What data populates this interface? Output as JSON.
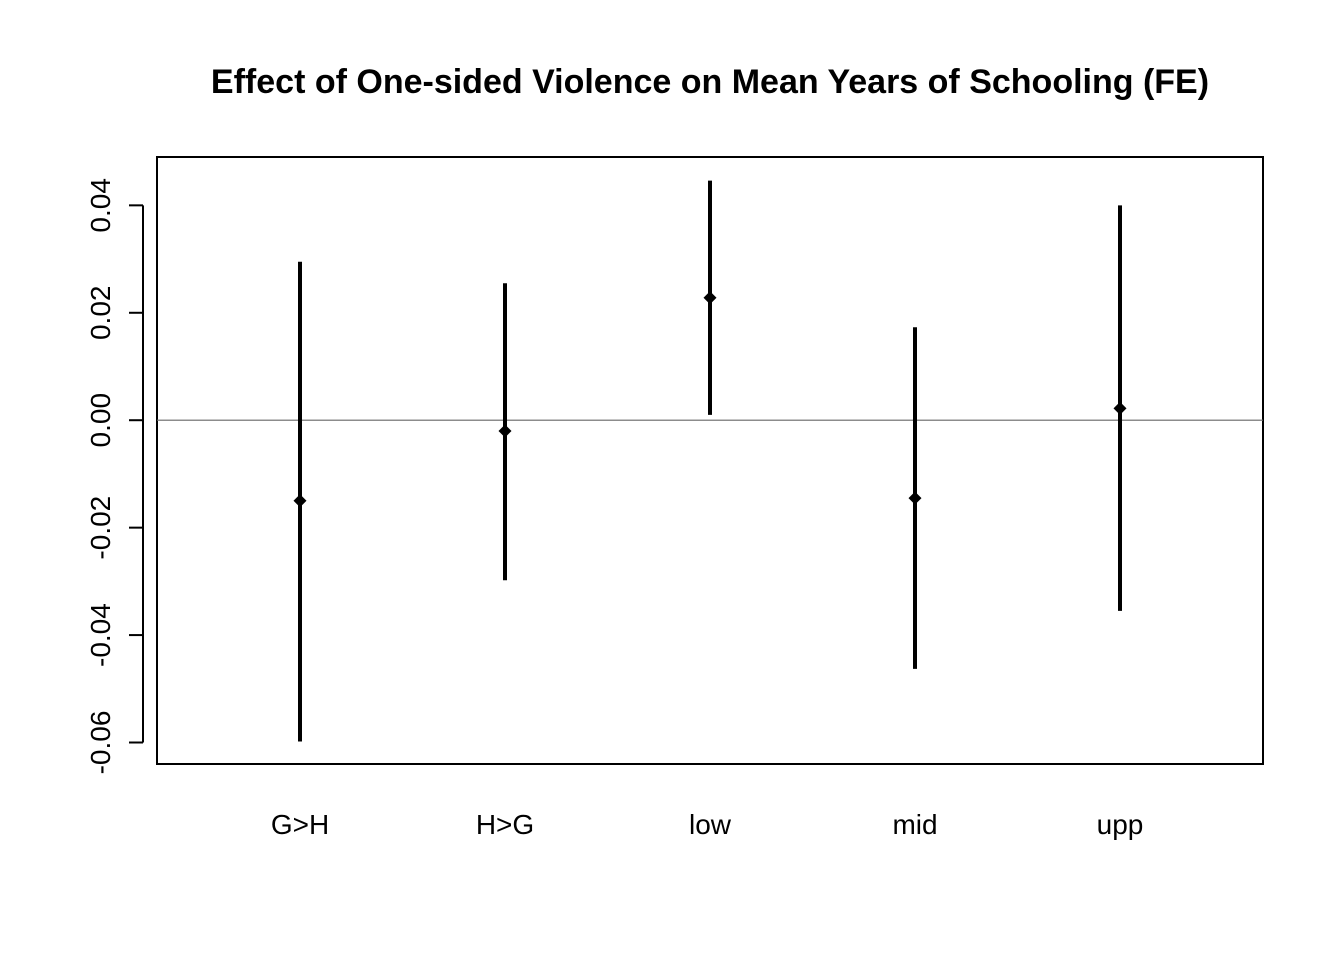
{
  "chart_data": {
    "type": "errorbar",
    "title": "Effect of One-sided Violence on Mean Years of Schooling (FE)",
    "xlabel": "",
    "ylabel": "",
    "categories": [
      "G>H",
      "H>G",
      "low",
      "mid",
      "upp"
    ],
    "estimates": [
      -0.015,
      -0.002,
      0.0228,
      -0.0145,
      0.0022
    ],
    "lower": [
      -0.0598,
      -0.0298,
      0.001,
      -0.0463,
      -0.0355
    ],
    "upper": [
      0.0295,
      0.0255,
      0.0446,
      0.0173,
      0.04
    ],
    "yticks": [
      -0.06,
      -0.04,
      -0.02,
      0.0,
      0.02,
      0.04
    ],
    "ytick_labels": [
      "-0.06",
      "-0.04",
      "-0.02",
      "0.00",
      "0.02",
      "0.04"
    ],
    "ylim": [
      -0.064,
      0.049
    ],
    "reference_line": 0,
    "grid": false,
    "colors": {
      "marks": "#000000",
      "reference_line": "#666666"
    }
  }
}
